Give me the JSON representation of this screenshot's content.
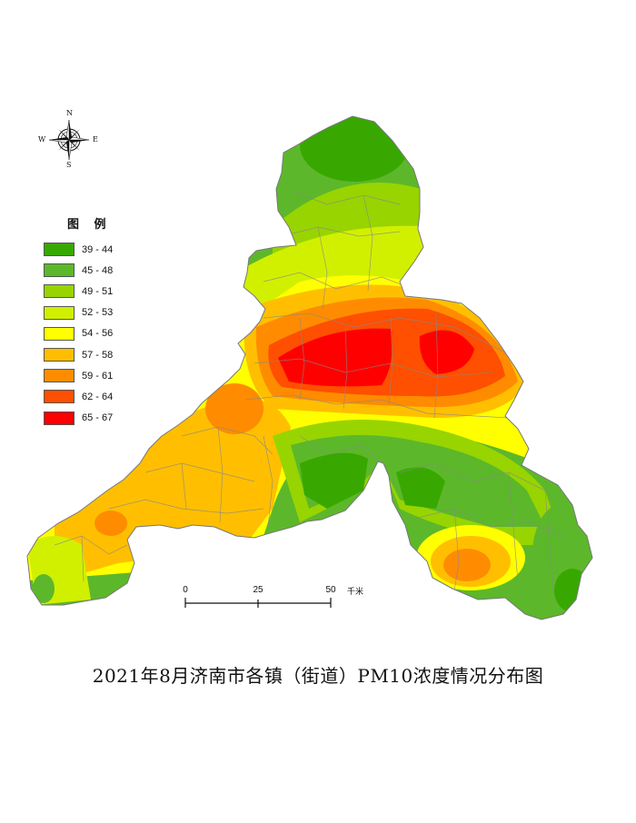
{
  "title": "2021年8月济南市各镇（街道）PM10浓度情况分布图",
  "compass": {
    "north": "N",
    "south": "S",
    "east": "E",
    "west": "W",
    "icon": "compass-rose-icon"
  },
  "legend": {
    "title": "图 例",
    "classes": [
      {
        "label": "39 - 44",
        "min": 39,
        "max": 44,
        "color": "#38a800"
      },
      {
        "label": "45 - 48",
        "min": 45,
        "max": 48,
        "color": "#5cb82a"
      },
      {
        "label": "49 - 51",
        "min": 49,
        "max": 51,
        "color": "#98d400"
      },
      {
        "label": "52 - 53",
        "min": 52,
        "max": 53,
        "color": "#d1f000"
      },
      {
        "label": "54 - 56",
        "min": 54,
        "max": 56,
        "color": "#ffff00"
      },
      {
        "label": "57 - 58",
        "min": 57,
        "max": 58,
        "color": "#ffbf00"
      },
      {
        "label": "59 - 61",
        "min": 59,
        "max": 61,
        "color": "#ff8c00"
      },
      {
        "label": "62 - 64",
        "min": 62,
        "max": 64,
        "color": "#ff4f00"
      },
      {
        "label": "65 - 67",
        "min": 65,
        "max": 67,
        "color": "#ff0000"
      }
    ]
  },
  "scale_bar": {
    "ticks": [
      "0",
      "25",
      "50"
    ],
    "unit": "千米"
  }
}
